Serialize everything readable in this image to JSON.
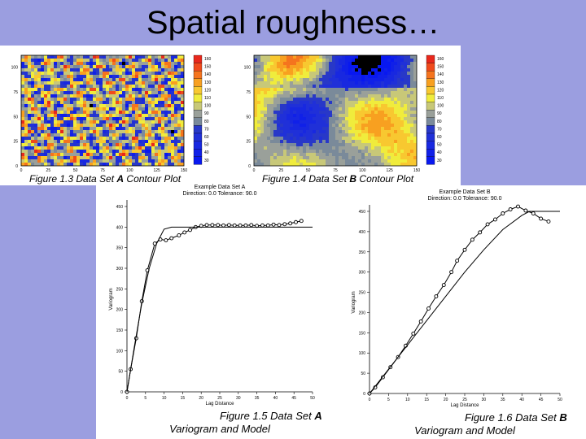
{
  "slide": {
    "title": "Spatial roughness…"
  },
  "contour_a": {
    "caption_parts": [
      "Figure 1.3  Data Set ",
      "A",
      " Contour Plot"
    ],
    "x_ticks": [
      "0",
      "25",
      "50",
      "75",
      "100",
      "125",
      "150"
    ],
    "y_ticks": [
      "0",
      "25",
      "50",
      "75",
      "100"
    ],
    "legend": [
      "160",
      "150",
      "140",
      "130",
      "120",
      "110",
      "100",
      "90",
      "80",
      "70",
      "60",
      "50",
      "40",
      "30"
    ]
  },
  "contour_b": {
    "caption_parts": [
      "Figure 1.4  Data Set ",
      "B",
      " Contour Plot"
    ],
    "x_ticks": [
      "0",
      "25",
      "50",
      "75",
      "100",
      "125",
      "150"
    ],
    "y_ticks": [
      "0",
      "25",
      "50",
      "75",
      "100"
    ],
    "legend": [
      "160",
      "150",
      "140",
      "130",
      "120",
      "110",
      "100",
      "90",
      "80",
      "70",
      "60",
      "50",
      "40",
      "30"
    ]
  },
  "legend_colors": [
    "#e8281c",
    "#f04a1c",
    "#f5741e",
    "#f8a020",
    "#f8c830",
    "#f0ec3c",
    "#c8c878",
    "#9aa09a",
    "#7a8a9a",
    "#2838c8",
    "#2030d8",
    "#1828e0",
    "#1020e8",
    "#0818f0"
  ],
  "chart_data": [
    {
      "type": "line",
      "title": "Example Data Set A",
      "subtitle": "Direction: 0.0   Tolerance: 90.0",
      "xlabel": "Lag Distance",
      "ylabel": "Variogram",
      "xlim": [
        0,
        50
      ],
      "ylim": [
        0,
        450
      ],
      "x_ticks": [
        0,
        5,
        10,
        15,
        20,
        25,
        30,
        35,
        40,
        45,
        50
      ],
      "y_ticks": [
        0,
        50,
        100,
        150,
        200,
        250,
        300,
        350,
        400,
        450
      ],
      "series": [
        {
          "kind": "experimental",
          "x": [
            0,
            1,
            2.5,
            4,
            5.5,
            7.5,
            9,
            10.5,
            12,
            14,
            15.5,
            17,
            18.5,
            20,
            21.5,
            23,
            24.5,
            26,
            27.5,
            29,
            30.5,
            32,
            33.5,
            35,
            36.5,
            38,
            39.5,
            41,
            42.5,
            44,
            45.5,
            47
          ],
          "y": [
            0,
            55,
            130,
            220,
            295,
            360,
            370,
            368,
            373,
            380,
            387,
            393,
            400,
            403,
            405,
            405,
            405,
            404,
            405,
            404,
            404,
            404,
            405,
            403,
            404,
            404,
            406,
            405,
            407,
            409,
            412,
            415
          ]
        },
        {
          "kind": "model",
          "x": [
            0,
            2,
            4,
            6,
            8,
            10,
            12,
            13,
            50
          ],
          "y": [
            0,
            110,
            215,
            300,
            360,
            395,
            400,
            400,
            400
          ]
        }
      ],
      "caption_parts": [
        "Figure 1.5  Data Set ",
        "A"
      ],
      "caption_line2": "Variogram and Model"
    },
    {
      "type": "line",
      "title": "Example Data Set B",
      "subtitle": "Direction: 0.0   Tolerance: 90.0",
      "xlabel": "Lag Distance",
      "ylabel": "Variogram",
      "xlim": [
        0,
        50
      ],
      "ylim": [
        0,
        450
      ],
      "x_ticks": [
        0,
        5,
        10,
        15,
        20,
        25,
        30,
        35,
        40,
        45,
        50
      ],
      "y_ticks": [
        0,
        50,
        100,
        150,
        200,
        250,
        300,
        350,
        400,
        450
      ],
      "series": [
        {
          "kind": "experimental",
          "x": [
            0,
            1.5,
            3.5,
            5.5,
            7.5,
            9.5,
            11.5,
            13.5,
            15.5,
            17.5,
            19.5,
            21.5,
            23,
            25,
            27,
            29,
            31,
            33,
            35,
            37,
            39,
            41,
            43,
            45,
            47
          ],
          "y": [
            0,
            15,
            40,
            65,
            90,
            118,
            148,
            178,
            210,
            240,
            268,
            300,
            328,
            355,
            380,
            398,
            418,
            430,
            445,
            455,
            462,
            452,
            445,
            432,
            425
          ]
        },
        {
          "kind": "model",
          "x": [
            0,
            5,
            10,
            15,
            20,
            25,
            30,
            35,
            40,
            42,
            50
          ],
          "y": [
            0,
            60,
            120,
            180,
            240,
            300,
            355,
            405,
            440,
            450,
            450
          ]
        }
      ],
      "caption_parts": [
        "Figure 1.6  Data Set ",
        "B"
      ],
      "caption_line2": "Variogram and Model"
    }
  ]
}
